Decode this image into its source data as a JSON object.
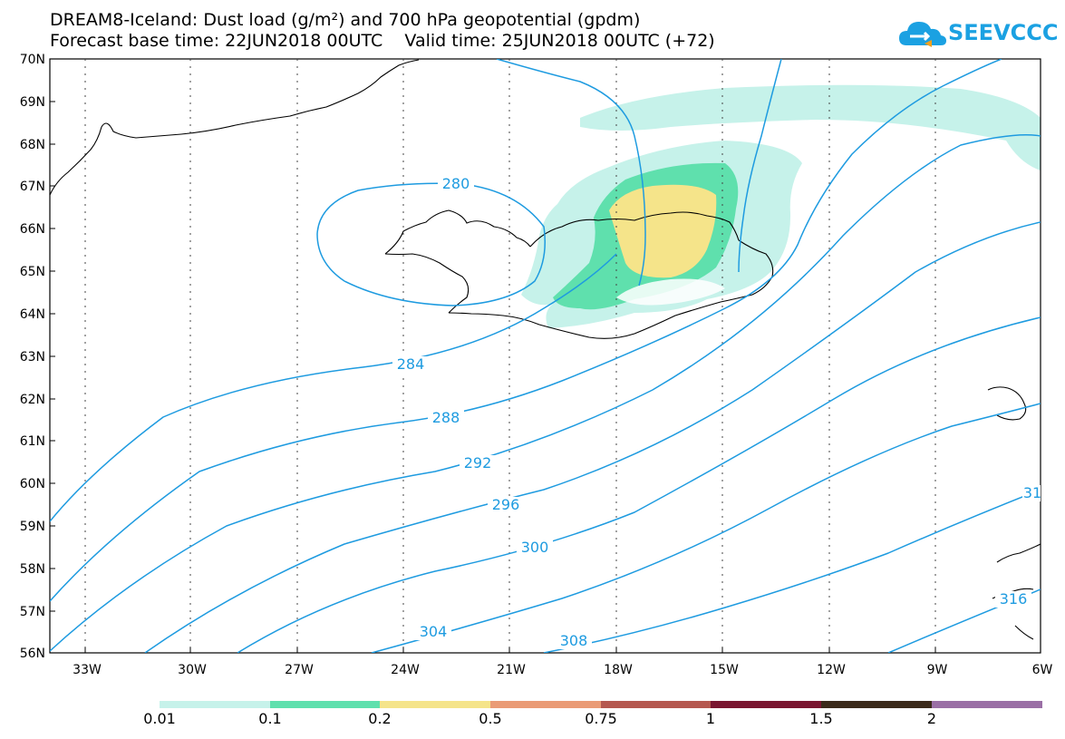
{
  "title_line1": "DREAM8-Iceland: Dust load (g/m²) and 700 hPa geopotential (gpdm)",
  "title_line2": "Forecast base time: 22JUN2018 00UTC    Valid time: 25JUN2018 00UTC (+72)",
  "logo_text": "SEEVCCC",
  "lat_labels": [
    "70N",
    "69N",
    "68N",
    "67N",
    "66N",
    "65N",
    "64N",
    "63N",
    "62N",
    "61N",
    "60N",
    "59N",
    "58N",
    "57N",
    "56N"
  ],
  "lon_labels": [
    "33W",
    "30W",
    "27W",
    "24W",
    "21W",
    "18W",
    "15W",
    "12W",
    "9W",
    "6W"
  ],
  "contour_labels": [
    "280",
    "284",
    "288",
    "292",
    "296",
    "300",
    "304",
    "308",
    "31",
    "316"
  ],
  "colorbar": {
    "labels": [
      "0.01",
      "0.1",
      "0.2",
      "0.5",
      "0.75",
      "1",
      "1.5",
      "2"
    ],
    "colors": [
      "#c6f2ea",
      "#5fe0ad",
      "#f5e48a",
      "#ea9b76",
      "#b5584f",
      "#7a1530",
      "#3b2a1a",
      "#9a6fa5"
    ]
  },
  "contour_color": "#1e9be0"
}
